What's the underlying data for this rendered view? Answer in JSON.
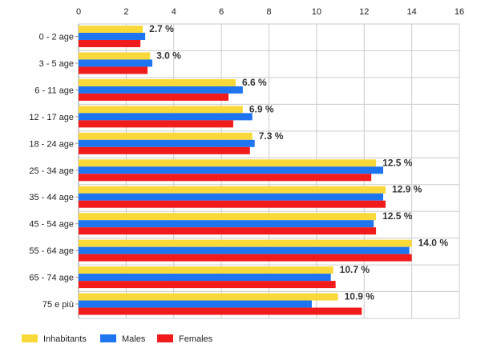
{
  "chart_data": {
    "type": "bar",
    "orientation": "horizontal",
    "categories": [
      "0 - 2 age",
      "3 - 5 age",
      "6 - 11 age",
      "12 - 17 age",
      "18 - 24 age",
      "25 - 34 age",
      "35 - 44 age",
      "45 - 54 age",
      "55 - 64 age",
      "65 - 74 age",
      "75 e più"
    ],
    "series": [
      {
        "name": "Inhabitants",
        "color": "#f9d93a",
        "values": [
          2.7,
          3.0,
          6.6,
          6.9,
          7.3,
          12.5,
          12.9,
          12.5,
          14.0,
          10.7,
          10.9
        ]
      },
      {
        "name": "Males",
        "color": "#1f74ef",
        "values": [
          2.8,
          3.1,
          6.9,
          7.3,
          7.4,
          12.8,
          12.8,
          12.4,
          13.9,
          10.6,
          9.8
        ]
      },
      {
        "name": "Females",
        "color": "#f21b1b",
        "values": [
          2.6,
          2.9,
          6.3,
          6.5,
          7.2,
          12.3,
          12.9,
          12.5,
          14.0,
          10.8,
          11.9
        ]
      }
    ],
    "data_labels": [
      "2.7 %",
      "3.0 %",
      "6.6 %",
      "6.9 %",
      "7.3 %",
      "12.5 %",
      "12.9 %",
      "12.5 %",
      "14.0 %",
      "10.7 %",
      "10.9 %"
    ],
    "x_ticks": [
      "0",
      "2",
      "4",
      "6",
      "8",
      "10",
      "12",
      "14",
      "16"
    ],
    "xlim": [
      0,
      16
    ],
    "x_axis_position": "top",
    "grid": true,
    "legend_position": "bottom-left"
  }
}
